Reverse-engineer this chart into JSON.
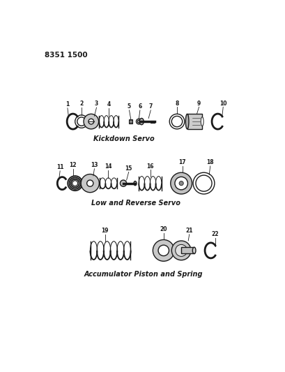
{
  "title_code": "8351 1500",
  "bg_color": "#ffffff",
  "line_color": "#1a1a1a",
  "section1_label": "Kickdown Servo",
  "section2_label": "Low and Reverse Servo",
  "section3_label": "Accumulator Piston and Spring",
  "s1y": 390,
  "s2y": 275,
  "s3y": 150,
  "figw": 4.1,
  "figh": 5.33,
  "dpi": 100
}
